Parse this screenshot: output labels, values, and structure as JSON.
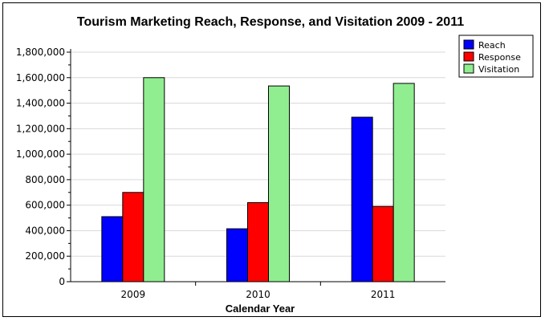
{
  "chart_data": {
    "type": "bar",
    "title": "Tourism Marketing Reach, Response, and Visitation  2009 - 2011",
    "xlabel": "Calendar Year",
    "ylabel": "",
    "categories": [
      "2009",
      "2010",
      "2011"
    ],
    "series": [
      {
        "name": "Reach",
        "color": "#0000ff",
        "values": [
          510000,
          415000,
          1290000
        ]
      },
      {
        "name": "Response",
        "color": "#ff0000",
        "values": [
          700000,
          620000,
          590000
        ]
      },
      {
        "name": "Visitation",
        "color": "#90ee90",
        "values": [
          1600000,
          1535000,
          1555000
        ]
      }
    ],
    "ylim": [
      0,
      1800000
    ],
    "yticks": [
      0,
      200000,
      400000,
      600000,
      800000,
      1000000,
      1200000,
      1400000,
      1600000,
      1800000
    ],
    "ytick_labels": [
      "0",
      "200,000",
      "400,000",
      "600,000",
      "800,000",
      "1,000,000",
      "1,200,000",
      "1,400,000",
      "1,600,000",
      "1,800,000"
    ],
    "grid": true,
    "legend_position": "top-right"
  }
}
